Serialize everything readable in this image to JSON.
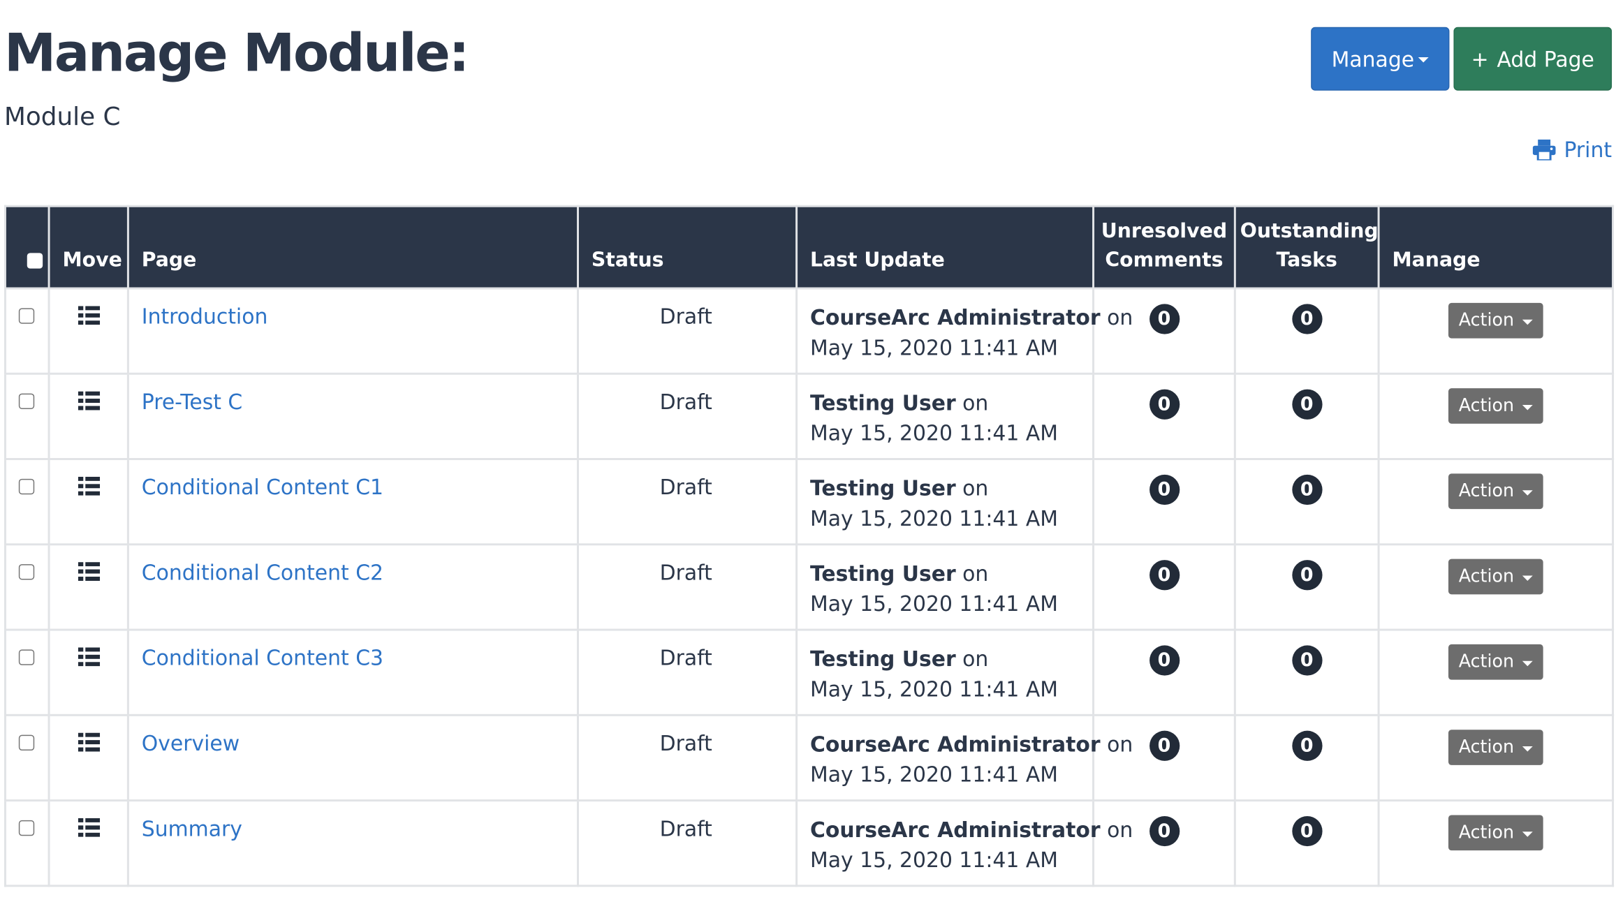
{
  "header": {
    "title": "Manage Module:",
    "subtitle": "Module C",
    "manage_label": "Manage",
    "add_page_label": "Add Page",
    "print_label": "Print"
  },
  "colors": {
    "dark": "#2b3648",
    "primary": "#2d73c6",
    "success": "#2e7d5b",
    "action": "#6d6d6d"
  },
  "table": {
    "headers": {
      "move": "Move",
      "page": "Page",
      "status": "Status",
      "last_update": "Last Update",
      "unresolved_comments": "Unresolved Comments",
      "outstanding_tasks": "Outstanding Tasks",
      "manage": "Manage"
    },
    "rows": [
      {
        "page": "Introduction",
        "status": "Draft",
        "user": "CourseArc Administrator",
        "on": "on",
        "date": "May 15, 2020 11:41 AM",
        "comments": "0",
        "tasks": "0",
        "action": "Action"
      },
      {
        "page": "Pre-Test C",
        "status": "Draft",
        "user": "Testing User",
        "on": "on",
        "date": "May 15, 2020 11:41 AM",
        "comments": "0",
        "tasks": "0",
        "action": "Action"
      },
      {
        "page": "Conditional Content C1",
        "status": "Draft",
        "user": "Testing User",
        "on": "on",
        "date": "May 15, 2020 11:41 AM",
        "comments": "0",
        "tasks": "0",
        "action": "Action"
      },
      {
        "page": "Conditional Content C2",
        "status": "Draft",
        "user": "Testing User",
        "on": "on",
        "date": "May 15, 2020 11:41 AM",
        "comments": "0",
        "tasks": "0",
        "action": "Action"
      },
      {
        "page": "Conditional Content C3",
        "status": "Draft",
        "user": "Testing User",
        "on": "on",
        "date": "May 15, 2020 11:41 AM",
        "comments": "0",
        "tasks": "0",
        "action": "Action"
      },
      {
        "page": "Overview",
        "status": "Draft",
        "user": "CourseArc Administrator",
        "on": "on",
        "date": "May 15, 2020 11:41 AM",
        "comments": "0",
        "tasks": "0",
        "action": "Action"
      },
      {
        "page": "Summary",
        "status": "Draft",
        "user": "CourseArc Administrator",
        "on": "on",
        "date": "May 15, 2020 11:41 AM",
        "comments": "0",
        "tasks": "0",
        "action": "Action"
      }
    ]
  }
}
